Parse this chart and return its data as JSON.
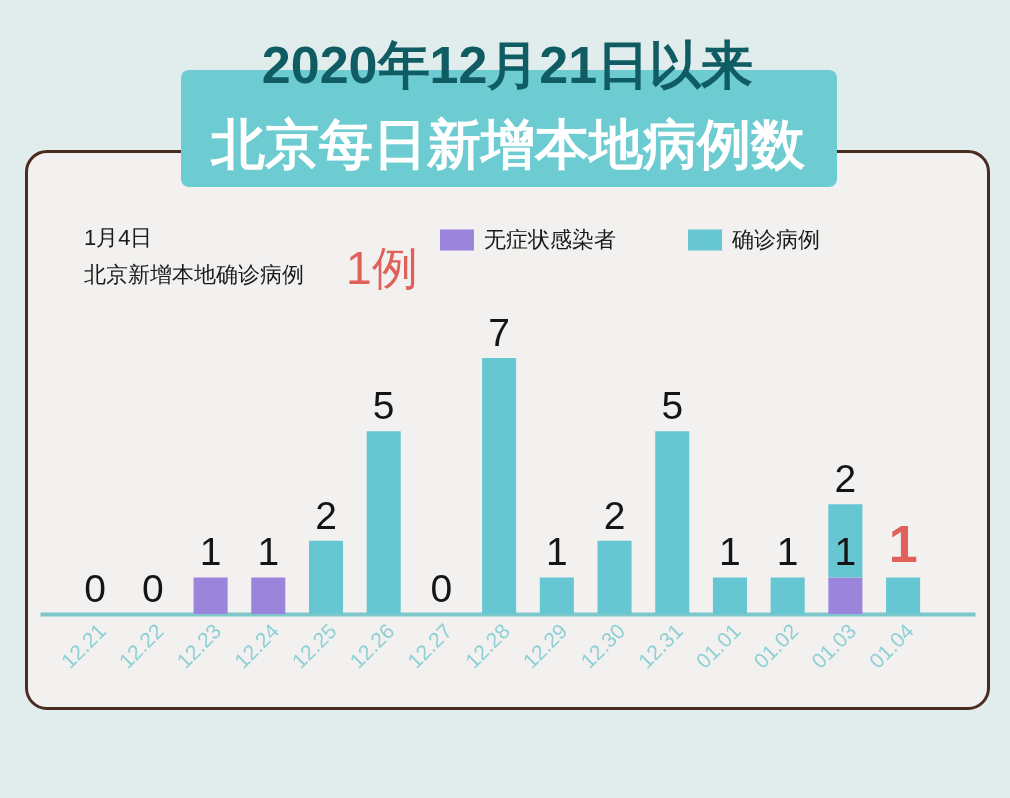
{
  "chart_data": {
    "type": "bar",
    "title": "2020年12月21日以来",
    "subtitle": "北京每日新增本地病例数",
    "categories": [
      "12.21",
      "12.22",
      "12.23",
      "12.24",
      "12.25",
      "12.26",
      "12.27",
      "12.28",
      "12.29",
      "12.30",
      "12.31",
      "01.01",
      "01.02",
      "01.03",
      "01.04"
    ],
    "stacked": true,
    "series": [
      {
        "name": "无症状感染者",
        "color": "#9b84db",
        "values": [
          0,
          0,
          1,
          1,
          0,
          0,
          0,
          0,
          0,
          0,
          0,
          0,
          0,
          1,
          0
        ],
        "value_labels": [
          null,
          null,
          "1",
          "1",
          null,
          null,
          null,
          null,
          null,
          null,
          null,
          null,
          null,
          "1",
          null
        ]
      },
      {
        "name": "确诊病例",
        "color": "#66c6d2",
        "values": [
          0,
          0,
          0,
          0,
          2,
          5,
          0,
          7,
          1,
          2,
          5,
          1,
          1,
          2,
          1
        ],
        "value_labels": [
          "0",
          "0",
          null,
          null,
          "2",
          "5",
          "0",
          "7",
          "1",
          "2",
          "5",
          "1",
          "1",
          "2",
          null
        ]
      }
    ],
    "annotations": [
      "1月4日",
      "北京新增本地确诊病例",
      "1例",
      {
        "text": "1",
        "x": "01.04",
        "y": 1
      }
    ],
    "legend": "top",
    "tick_labels": "x"
  }
}
